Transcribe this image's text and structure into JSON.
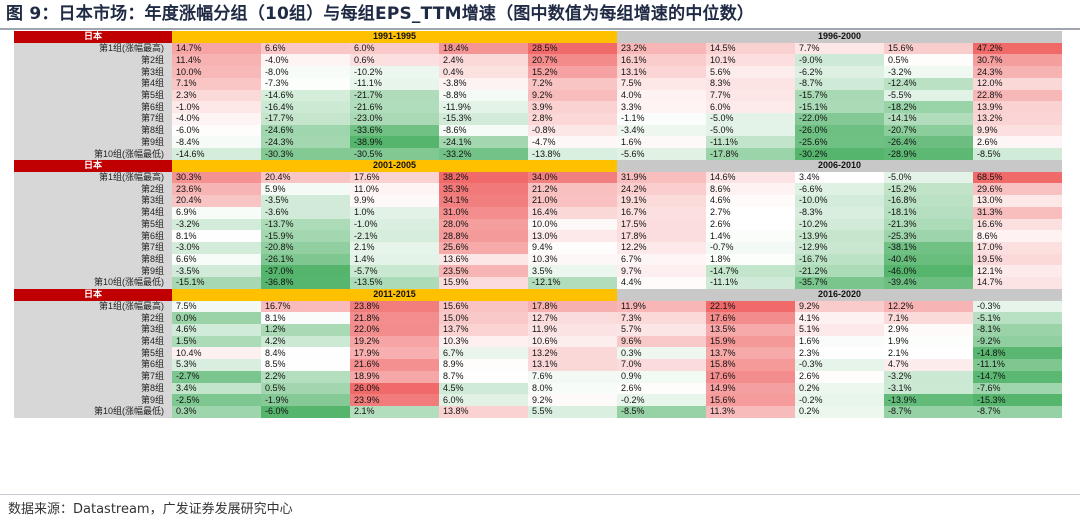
{
  "title": "图 9：日本市场：年度涨幅分组（10组）与每组EPS_TTM增速（图中数值为每组增速的中位数）",
  "source": "数据来源：Datastream，广发证券发展研究中心",
  "colors": {
    "red_max": "#f06a6a",
    "neutral": "#ffffff",
    "green_max": "#55b56d",
    "header_red": "#c00000",
    "header_yellow": "#ffc000",
    "header_gray": "#c8c8c8",
    "label_gray": "#d7d7d7"
  },
  "row_labels": [
    "第1组(涨幅最高)",
    "第2组",
    "第3组",
    "第4组",
    "第5组",
    "第6组",
    "第7组",
    "第8组",
    "第9组",
    "第10组(涨幅最低)"
  ],
  "blocks": [
    {
      "market": "日本",
      "periods": [
        "1991-1995",
        "1996-2000"
      ],
      "rows": [
        [
          "14.7%",
          "6.6%",
          "6.0%",
          "18.4%",
          "28.5%",
          "23.2%",
          "14.5%",
          "7.7%",
          "15.6%",
          "47.2%"
        ],
        [
          "11.4%",
          "-4.0%",
          "0.6%",
          "2.4%",
          "20.7%",
          "16.1%",
          "10.1%",
          "-9.0%",
          "0.5%",
          "30.7%"
        ],
        [
          "10.0%",
          "-8.0%",
          "-10.2%",
          "0.4%",
          "15.2%",
          "13.1%",
          "5.6%",
          "-6.2%",
          "-3.2%",
          "24.3%"
        ],
        [
          "7.1%",
          "-7.3%",
          "-11.1%",
          "-3.8%",
          "7.2%",
          "7.5%",
          "8.3%",
          "-8.7%",
          "-12.4%",
          "12.0%"
        ],
        [
          "2.3%",
          "-14.6%",
          "-21.7%",
          "-8.8%",
          "9.2%",
          "4.0%",
          "7.7%",
          "-15.7%",
          "-5.5%",
          "22.8%"
        ],
        [
          "-1.0%",
          "-16.4%",
          "-21.6%",
          "-11.9%",
          "3.9%",
          "3.3%",
          "6.0%",
          "-15.1%",
          "-18.2%",
          "13.9%"
        ],
        [
          "-4.0%",
          "-17.7%",
          "-23.0%",
          "-15.3%",
          "2.8%",
          "-1.1%",
          "-5.0%",
          "-22.0%",
          "-14.1%",
          "13.2%"
        ],
        [
          "-6.0%",
          "-24.6%",
          "-33.6%",
          "-8.6%",
          "-0.8%",
          "-3.4%",
          "-5.0%",
          "-26.0%",
          "-20.7%",
          "9.9%"
        ],
        [
          "-8.4%",
          "-24.3%",
          "-38.9%",
          "-24.1%",
          "-4.7%",
          "1.6%",
          "-11.1%",
          "-25.6%",
          "-26.4%",
          "2.6%"
        ],
        [
          "-14.6%",
          "-30.3%",
          "-30.5%",
          "-33.2%",
          "-13.8%",
          "-5.6%",
          "-17.8%",
          "-30.2%",
          "-28.9%",
          "-8.5%"
        ]
      ]
    },
    {
      "market": "日本",
      "periods": [
        "2001-2005",
        "2006-2010"
      ],
      "rows": [
        [
          "30.3%",
          "20.4%",
          "17.6%",
          "38.2%",
          "34.0%",
          "31.9%",
          "14.6%",
          "3.4%",
          "-5.0%",
          "68.5%"
        ],
        [
          "23.6%",
          "5.9%",
          "11.0%",
          "35.3%",
          "21.2%",
          "24.2%",
          "8.6%",
          "-6.6%",
          "-15.2%",
          "29.6%"
        ],
        [
          "20.4%",
          "-3.5%",
          "9.9%",
          "34.1%",
          "21.0%",
          "19.1%",
          "4.6%",
          "-10.0%",
          "-16.8%",
          "13.0%"
        ],
        [
          "6.9%",
          "-3.6%",
          "1.0%",
          "31.0%",
          "16.4%",
          "16.7%",
          "2.7%",
          "-8.3%",
          "-18.1%",
          "31.3%"
        ],
        [
          "-3.2%",
          "-13.7%",
          "-1.0%",
          "28.0%",
          "10.0%",
          "17.5%",
          "2.6%",
          "-10.2%",
          "-21.3%",
          "16.6%"
        ],
        [
          "8.1%",
          "-15.9%",
          "-2.1%",
          "28.8%",
          "13.0%",
          "17.8%",
          "1.4%",
          "-13.9%",
          "-25.3%",
          "8.6%"
        ],
        [
          "-3.0%",
          "-20.8%",
          "2.1%",
          "25.6%",
          "9.4%",
          "12.2%",
          "-0.7%",
          "-12.9%",
          "-38.1%",
          "17.0%"
        ],
        [
          "6.6%",
          "-26.1%",
          "1.4%",
          "13.6%",
          "10.3%",
          "6.7%",
          "1.8%",
          "-16.7%",
          "-40.4%",
          "19.5%"
        ],
        [
          "-3.5%",
          "-37.0%",
          "-5.7%",
          "23.5%",
          "3.5%",
          "9.7%",
          "-14.7%",
          "-21.2%",
          "-46.0%",
          "12.1%"
        ],
        [
          "-15.1%",
          "-36.8%",
          "-13.5%",
          "15.9%",
          "-12.1%",
          "4.4%",
          "-11.1%",
          "-35.7%",
          "-39.4%",
          "14.7%"
        ]
      ]
    },
    {
      "market": "日本",
      "periods": [
        "2011-2015",
        "2016-2020"
      ],
      "rows": [
        [
          "7.5%",
          "16.7%",
          "23.8%",
          "15.6%",
          "17.8%",
          "11.9%",
          "22.1%",
          "9.2%",
          "12.2%",
          "-0.3%"
        ],
        [
          "0.0%",
          "8.1%",
          "21.8%",
          "15.0%",
          "12.7%",
          "7.3%",
          "17.6%",
          "4.1%",
          "7.1%",
          "-5.1%"
        ],
        [
          "4.6%",
          "1.2%",
          "22.0%",
          "13.7%",
          "11.9%",
          "5.7%",
          "13.5%",
          "5.1%",
          "2.9%",
          "-8.1%"
        ],
        [
          "1.5%",
          "4.2%",
          "19.2%",
          "10.3%",
          "10.6%",
          "9.6%",
          "15.9%",
          "1.6%",
          "1.9%",
          "-9.2%"
        ],
        [
          "10.4%",
          "8.4%",
          "17.9%",
          "6.7%",
          "13.2%",
          "0.3%",
          "13.7%",
          "2.3%",
          "2.1%",
          "-14.8%"
        ],
        [
          "5.3%",
          "8.5%",
          "21.6%",
          "8.9%",
          "13.1%",
          "7.0%",
          "15.8%",
          "-0.3%",
          "4.7%",
          "-11.1%"
        ],
        [
          "-2.7%",
          "2.2%",
          "18.9%",
          "8.7%",
          "7.6%",
          "0.9%",
          "17.6%",
          "2.6%",
          "-3.2%",
          "-14.7%"
        ],
        [
          "3.4%",
          "0.5%",
          "26.0%",
          "4.5%",
          "8.0%",
          "2.6%",
          "14.9%",
          "0.2%",
          "-3.1%",
          "-7.6%"
        ],
        [
          "-2.5%",
          "-1.9%",
          "23.9%",
          "6.0%",
          "9.2%",
          "-0.2%",
          "15.6%",
          "-0.2%",
          "-13.9%",
          "-15.3%"
        ],
        [
          "0.3%",
          "-6.0%",
          "2.1%",
          "13.8%",
          "5.5%",
          "-8.5%",
          "11.3%",
          "0.2%",
          "-8.7%",
          "-8.7%"
        ]
      ]
    }
  ]
}
